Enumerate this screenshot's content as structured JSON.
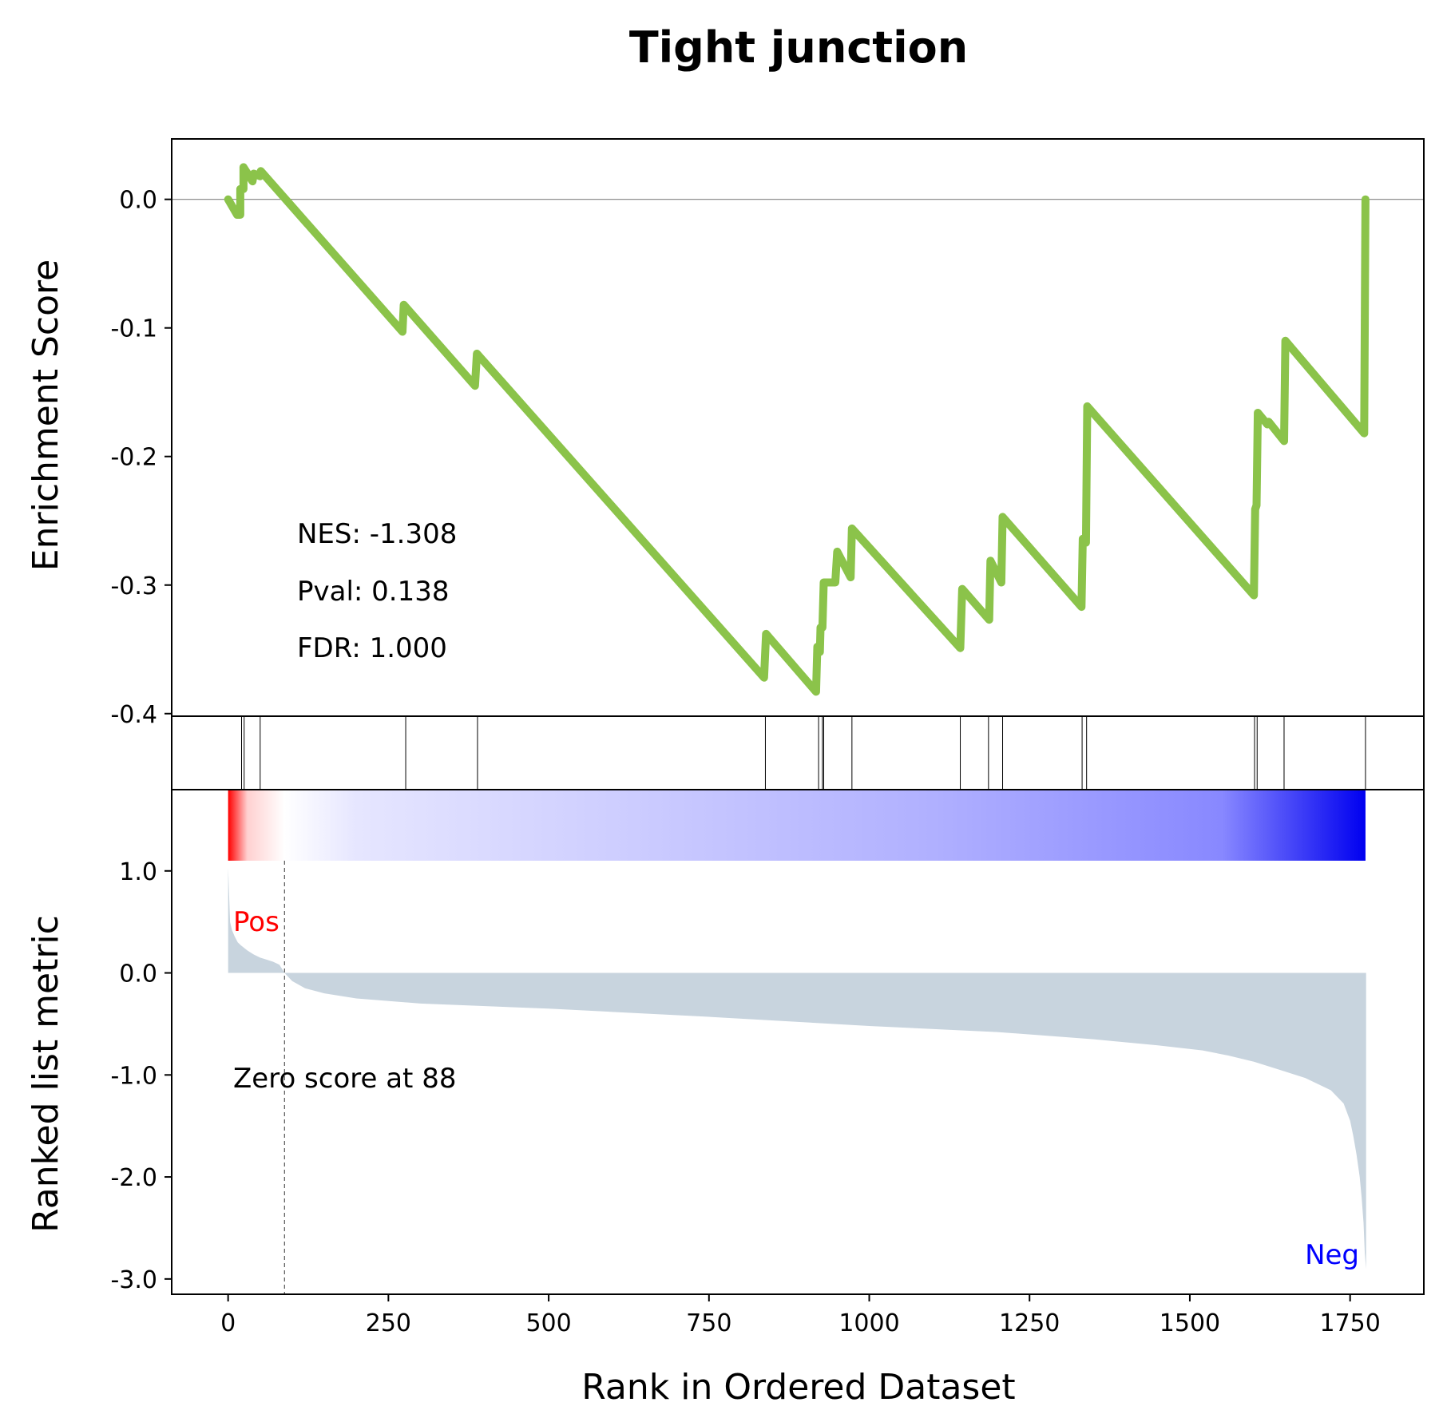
{
  "chart_data": {
    "type": "line",
    "title": "Tight junction",
    "xlabel": "Rank in Ordered Dataset",
    "xlim": [
      -88,
      1865
    ],
    "x_ticks": [
      "0",
      "250",
      "500",
      "750",
      "1000",
      "1250",
      "1500",
      "1750"
    ],
    "x_tick_values": [
      0,
      250,
      500,
      750,
      1000,
      1250,
      1500,
      1750
    ],
    "enrichment_panel": {
      "ylabel": "Enrichment Score",
      "ylim": [
        -0.402,
        0.047
      ],
      "y_ticks": [
        "0.0",
        "-0.1",
        "-0.2",
        "-0.3",
        "-0.4"
      ],
      "y_tick_values": [
        0.0,
        -0.1,
        -0.2,
        -0.3,
        -0.4
      ],
      "line_color": "#8bc34a",
      "zero_line": 0.0,
      "series": [
        {
          "x": [
            0,
            14,
            19,
            19,
            24,
            24,
            38,
            40,
            50,
            51,
            272,
            274,
            385,
            388,
            836,
            839,
            917,
            919,
            923,
            924,
            927,
            929,
            947,
            950,
            971,
            973,
            1142,
            1145,
            1187,
            1189,
            1206,
            1208,
            1331,
            1333,
            1338,
            1340,
            1600,
            1602,
            1604,
            1606,
            1621,
            1623,
            1647,
            1649,
            1772,
            1774
          ],
          "y": [
            0.0,
            -0.012,
            -0.012,
            0.008,
            0.008,
            0.025,
            0.014,
            0.02,
            0.018,
            0.022,
            -0.103,
            -0.082,
            -0.145,
            -0.12,
            -0.372,
            -0.338,
            -0.383,
            -0.348,
            -0.352,
            -0.333,
            -0.333,
            -0.298,
            -0.298,
            -0.274,
            -0.294,
            -0.256,
            -0.349,
            -0.303,
            -0.327,
            -0.281,
            -0.298,
            -0.247,
            -0.317,
            -0.264,
            -0.267,
            -0.161,
            -0.308,
            -0.241,
            -0.238,
            -0.166,
            -0.175,
            -0.173,
            -0.188,
            -0.11,
            -0.182,
            0.0
          ]
        }
      ],
      "annotations": [
        "NES: -1.308",
        "Pval: 0.138",
        "FDR: 1.000"
      ]
    },
    "hits_panel": {
      "hit_ranks": [
        21,
        25,
        50,
        277,
        389,
        838,
        921,
        927,
        929,
        973,
        1142,
        1186,
        1208,
        1332,
        1339,
        1601,
        1605,
        1647,
        1774
      ]
    },
    "colorbar": {
      "range": [
        0,
        1774
      ],
      "colors": [
        "#ff0000",
        "#ffd0d0",
        "#ffffff",
        "#e6e6ff",
        "#c8c8ff",
        "#b0b0ff",
        "#8888ff",
        "#0000f0"
      ],
      "color_positions": [
        0,
        30,
        88,
        200,
        700,
        1100,
        1550,
        1774
      ]
    },
    "metric_panel": {
      "ylabel": "Ranked list metric",
      "ylim": [
        -3.15,
        1.1
      ],
      "y_ticks": [
        "1.0",
        "0.0",
        "-1.0",
        "-2.0",
        "-3.0"
      ],
      "y_tick_values": [
        1.0,
        0.0,
        -1.0,
        -2.0,
        -3.0
      ],
      "fill_color": "#c8d4de",
      "x": [
        0,
        3,
        6,
        10,
        15,
        20,
        30,
        40,
        50,
        60,
        70,
        80,
        88,
        100,
        120,
        150,
        200,
        300,
        500,
        750,
        1000,
        1200,
        1350,
        1450,
        1520,
        1560,
        1600,
        1640,
        1680,
        1720,
        1740,
        1750,
        1755,
        1760,
        1765,
        1768,
        1771,
        1773,
        1775
      ],
      "y": [
        1.03,
        0.5,
        0.42,
        0.36,
        0.3,
        0.27,
        0.22,
        0.18,
        0.15,
        0.13,
        0.11,
        0.08,
        0.0,
        -0.08,
        -0.15,
        -0.2,
        -0.25,
        -0.3,
        -0.35,
        -0.43,
        -0.52,
        -0.58,
        -0.65,
        -0.71,
        -0.76,
        -0.81,
        -0.87,
        -0.95,
        -1.03,
        -1.15,
        -1.28,
        -1.45,
        -1.6,
        -1.78,
        -2.0,
        -2.2,
        -2.45,
        -2.75,
        -2.9
      ],
      "zero_score_rank": 88,
      "labels": {
        "pos": "Pos",
        "neg": "Neg",
        "zero": "Zero score at 88"
      },
      "pos_color": "#ff0000",
      "neg_color": "#0000ff"
    }
  }
}
